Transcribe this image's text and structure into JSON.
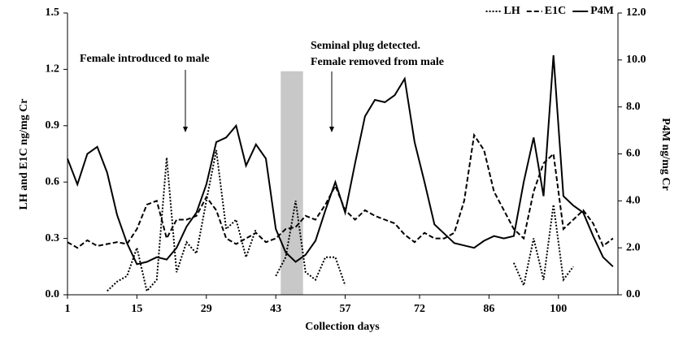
{
  "chart_data": {
    "type": "line",
    "x_label": "Collection days",
    "y_label": "LH and E1C ng/mg Cr",
    "y2_label": "P4M ng/mg Cr",
    "annotations": [
      "Female introduced to male",
      "Seminal plug detected.",
      "Female removed from male"
    ],
    "shaded_region": {
      "x": [
        44,
        48.5
      ],
      "y": [
        0,
        1.19
      ],
      "color": "#c8c8c8"
    },
    "x": [
      1,
      3,
      5,
      7,
      9,
      11,
      13,
      15,
      17,
      19,
      21,
      23,
      25,
      27,
      29,
      31,
      33,
      35,
      37,
      39,
      41,
      43,
      45,
      47,
      49,
      51,
      53,
      55,
      57,
      59,
      61,
      63,
      65,
      67,
      69,
      71,
      73,
      75,
      77,
      79,
      81,
      83,
      85,
      87,
      89,
      91,
      93,
      95,
      97,
      99,
      101,
      103,
      105,
      107,
      109,
      111
    ],
    "series": [
      {
        "name": "LH",
        "color": "#000000",
        "style": "dotted",
        "axis": "y",
        "values": [
          null,
          null,
          null,
          null,
          0.02,
          0.07,
          0.1,
          0.25,
          0.02,
          0.08,
          0.73,
          0.12,
          0.28,
          0.22,
          0.5,
          0.77,
          0.35,
          0.4,
          0.2,
          0.35,
          null,
          0.1,
          0.2,
          0.5,
          0.12,
          0.08,
          0.2,
          0.2,
          0.05,
          null,
          null,
          null,
          null,
          null,
          null,
          null,
          null,
          null,
          null,
          null,
          null,
          null,
          null,
          null,
          null,
          0.17,
          0.05,
          0.3,
          0.08,
          0.48,
          0.08,
          0.15,
          null,
          null,
          null,
          null
        ]
      },
      {
        "name": "E1C",
        "color": "#000000",
        "style": "dashed",
        "axis": "y",
        "values": [
          0.28,
          0.25,
          0.29,
          0.26,
          0.27,
          0.28,
          0.27,
          0.35,
          0.48,
          0.5,
          0.3,
          0.4,
          0.4,
          0.42,
          0.52,
          0.45,
          0.3,
          0.27,
          0.3,
          0.33,
          0.28,
          0.3,
          0.35,
          0.36,
          0.42,
          0.4,
          0.48,
          0.58,
          0.45,
          0.4,
          0.45,
          0.42,
          0.4,
          0.38,
          0.32,
          0.28,
          0.33,
          0.3,
          0.3,
          0.33,
          0.5,
          0.85,
          0.77,
          0.55,
          0.45,
          0.35,
          0.3,
          0.55,
          0.7,
          0.75,
          0.35,
          0.4,
          0.45,
          0.38,
          0.26,
          0.3
        ]
      },
      {
        "name": "P4M",
        "color": "#000000",
        "style": "solid",
        "axis": "y2",
        "values": [
          5.8,
          4.7,
          6.0,
          6.3,
          5.2,
          3.4,
          2.2,
          1.3,
          1.4,
          1.6,
          1.5,
          2.0,
          2.9,
          3.5,
          4.7,
          6.5,
          6.7,
          7.2,
          5.5,
          6.4,
          5.8,
          2.8,
          1.8,
          1.4,
          1.7,
          2.3,
          3.6,
          4.8,
          3.5,
          5.6,
          7.6,
          8.3,
          8.2,
          8.5,
          9.2,
          6.5,
          4.8,
          3.0,
          2.6,
          2.2,
          2.1,
          2.0,
          2.3,
          2.5,
          2.4,
          2.5,
          4.8,
          6.7,
          4.2,
          10.2,
          4.2,
          3.8,
          3.5,
          2.5,
          1.6,
          1.2
        ]
      }
    ],
    "xlim": [
      1,
      112
    ],
    "xticks": [
      1,
      15,
      29,
      43,
      57,
      72,
      86,
      100
    ],
    "ylim": [
      0,
      1.5
    ],
    "yticks": [
      {
        "value": 0,
        "label": "0.0"
      },
      0.3,
      0.6,
      0.9,
      1.2,
      1.5
    ],
    "y2lim": [
      0,
      12
    ],
    "y2ticks": [
      {
        "value": 0,
        "label": "0.0"
      },
      {
        "value": 2,
        "label": "2.0"
      },
      {
        "value": 4,
        "label": "4.0"
      },
      {
        "value": 6,
        "label": "6.0"
      },
      {
        "value": 8,
        "label": "8.0"
      },
      {
        "value": 10,
        "label": "10.0"
      },
      {
        "value": 12,
        "label": "12.0"
      }
    ],
    "grid": false,
    "legend": "top-right"
  }
}
